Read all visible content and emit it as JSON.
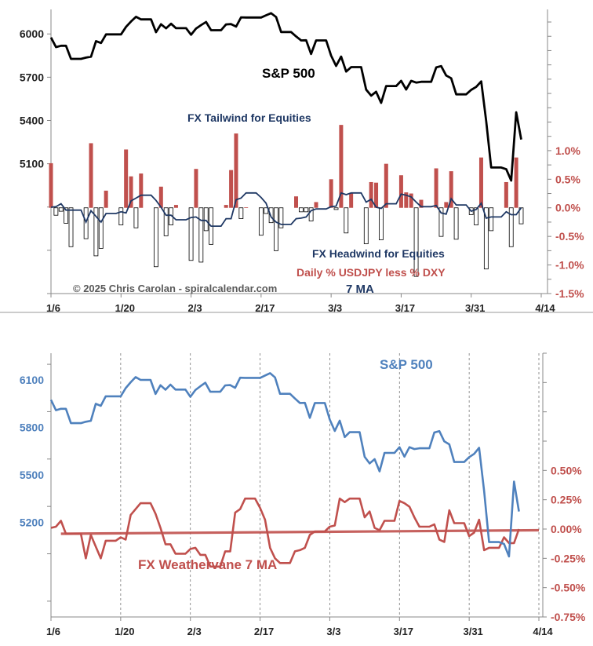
{
  "chart_data": [
    {
      "type": "line+bar",
      "title": "",
      "annotations": {
        "sp_label": "S&P 500",
        "tailwind": "FX Tailwind for Equities",
        "headwind": "FX Headwind for Equities",
        "daily": "Daily % USDJPY less % DXY",
        "ma": "7 MA",
        "copyright": "© 2025 Chris Carolan - spiralcalendar.com"
      },
      "x_ticks": [
        "1/6",
        "1/20",
        "2/3",
        "2/17",
        "3/3",
        "3/17",
        "3/31",
        "4/14"
      ],
      "y_left_ticks": [
        "6000",
        "5700",
        "5400",
        "5100"
      ],
      "y_left_range": [
        4200,
        6170
      ],
      "y_right_ticks": [
        "1.0%",
        "0.5%",
        "0.0%",
        "-0.5%",
        "-1.0%",
        "-1.5%"
      ],
      "y_right_range": [
        -1.5,
        3.47
      ],
      "colors": {
        "sp": "#000000",
        "bar_pos": "#c0504d",
        "bar_neg": "#ffffff",
        "ma": "#1f3864"
      }
    },
    {
      "type": "line",
      "annotations": {
        "sp_label": "S&P 500",
        "fx_label": "FX Weathervane 7 MA"
      },
      "x_ticks": [
        "1/6",
        "1/20",
        "2/3",
        "2/17",
        "3/3",
        "3/17",
        "3/31",
        "4/14"
      ],
      "y_left_ticks": [
        "6100",
        "5800",
        "5500",
        "5200"
      ],
      "y_left_range": [
        4600,
        6270
      ],
      "y_right_ticks": [
        "0.50%",
        "0.25%",
        "0.00%",
        "-0.25%",
        "-0.50%",
        "-0.75%"
      ],
      "y_right_range": [
        -0.75,
        1.5
      ],
      "trend": {
        "start": -0.04,
        "end": -0.01
      },
      "colors": {
        "sp": "#4f81bd",
        "fx": "#c0504d"
      }
    }
  ],
  "series": {
    "dates": [
      "1/6",
      "1/7",
      "1/8",
      "1/9",
      "1/10",
      "1/13",
      "1/14",
      "1/15",
      "1/16",
      "1/17",
      "1/20",
      "1/21",
      "1/22",
      "1/23",
      "1/24",
      "1/27",
      "1/28",
      "1/29",
      "1/30",
      "1/31",
      "2/3",
      "2/4",
      "2/5",
      "2/6",
      "2/7",
      "2/10",
      "2/11",
      "2/12",
      "2/13",
      "2/14",
      "2/17",
      "2/18",
      "2/19",
      "2/20",
      "2/21",
      "2/24",
      "2/25",
      "2/26",
      "2/27",
      "2/28",
      "3/3",
      "3/4",
      "3/5",
      "3/6",
      "3/7",
      "3/10",
      "3/11",
      "3/12",
      "3/13",
      "3/14",
      "3/17",
      "3/18",
      "3/19",
      "3/20",
      "3/21",
      "3/24",
      "3/25",
      "3/26",
      "3/27",
      "3/28",
      "3/31",
      "4/1",
      "4/2",
      "4/3",
      "4/4",
      "4/7",
      "4/8",
      "4/9",
      "4/10"
    ],
    "sp500": [
      5975,
      5909,
      5918,
      5918,
      5827,
      5836,
      5842,
      5950,
      5937,
      5997,
      5997,
      6049,
      6086,
      6119,
      6101,
      6012,
      6067,
      6039,
      6071,
      6040,
      5994,
      6037,
      6061,
      6083,
      6026,
      6066,
      6068,
      6051,
      6115,
      6114,
      6114,
      6129,
      6144,
      6117,
      6013,
      5983,
      5955,
      5956,
      5861,
      5955,
      5850,
      5778,
      5843,
      5739,
      5770,
      5614,
      5572,
      5599,
      5522,
      5639,
      5675,
      5615,
      5675,
      5663,
      5668,
      5768,
      5777,
      5712,
      5693,
      5581,
      5612,
      5633,
      5671,
      5397,
      5074,
      5062,
      4983,
      5457,
      5268
    ],
    "daily_fx": [
      0.78,
      -0.13,
      -0.06,
      -0.27,
      -0.68,
      -0.54,
      1.13,
      -0.84,
      -0.71,
      0.3,
      -0.3,
      1.02,
      0.55,
      -0.35,
      0.6,
      -1.03,
      0.37,
      -0.49,
      -0.3,
      0.05,
      -0.92,
      0.68,
      -0.95,
      -0.4,
      -0.64,
      0.05,
      0.66,
      1.3,
      -0.19,
      0.01,
      -0.48,
      -0.1,
      -0.26,
      -0.75,
      -0.35,
      0.2,
      -0.07,
      -0.07,
      -0.23,
      0.1,
      0.5,
      -0.03,
      1.45,
      -0.44,
      0.26,
      -0.63,
      0.45,
      0.44,
      -0.56,
      0.77,
      0.57,
      0.27,
      0.25,
      -1.2,
      0.14,
      0.69,
      -0.5,
      0.1,
      0.64,
      -0.55,
      -0.12,
      -0.3,
      0.88,
      -1.07,
      -0.4,
      0.45,
      -0.68,
      0.88,
      -0.28
    ],
    "fx_7ma": [
      0.01,
      0.02,
      0.07,
      -0.04,
      -0.04,
      -0.25,
      -0.05,
      -0.15,
      -0.25,
      -0.1,
      -0.07,
      -0.09,
      0.12,
      0.17,
      0.22,
      0.13,
      0.01,
      -0.13,
      -0.13,
      -0.21,
      -0.17,
      -0.16,
      -0.22,
      -0.22,
      -0.32,
      -0.19,
      -0.19,
      0.14,
      0.17,
      0.26,
      0.18,
      0.08,
      -0.16,
      -0.25,
      -0.29,
      -0.19,
      -0.18,
      -0.16,
      -0.05,
      -0.02,
      0.02,
      0.03,
      0.26,
      0.23,
      0.26,
      0.1,
      0.15,
      0.01,
      -0.01,
      0.07,
      0.24,
      0.22,
      0.19,
      0.1,
      0.02,
      0.04,
      -0.09,
      -0.11,
      0.16,
      0.05,
      -0.06,
      -0.03,
      0.08,
      -0.18,
      -0.16,
      -0.07,
      -0.12,
      -0.12,
      0.0
    ]
  }
}
